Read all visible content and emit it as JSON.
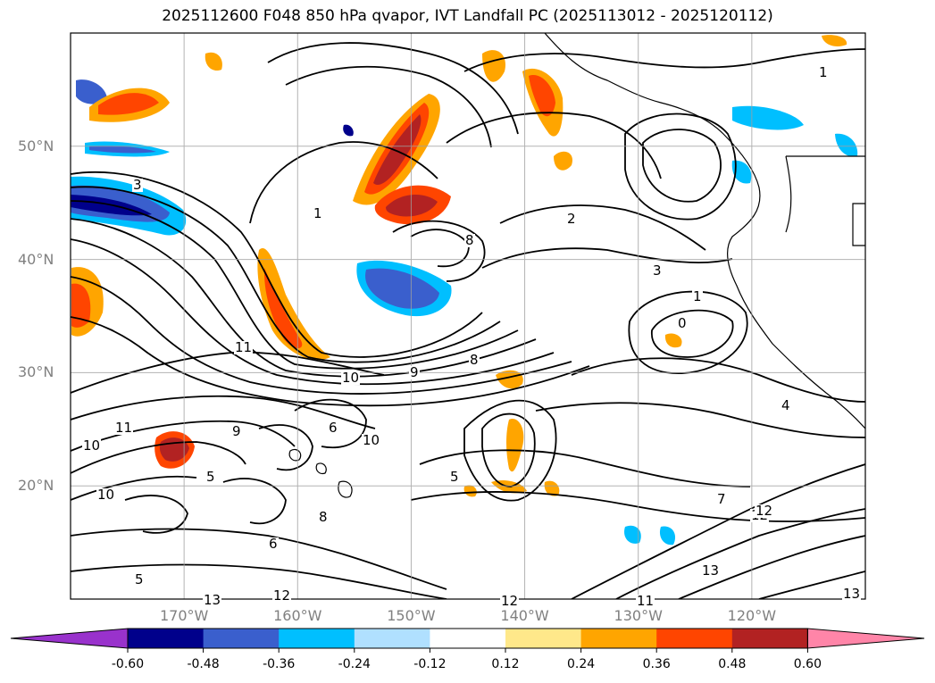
{
  "title": "2025112600 F048 850 hPa qvapor, IVT Landfall PC (2025113012 - 2025120112)",
  "map": {
    "lon_min": -180,
    "lon_max": -110,
    "lat_min": 10,
    "lat_max": 60,
    "lat_labels": [
      "20°N",
      "30°N",
      "40°N",
      "50°N"
    ],
    "lat_values": [
      20,
      30,
      40,
      50
    ],
    "lon_labels": [
      "170°W",
      "160°W",
      "150°W",
      "140°W",
      "130°W",
      "120°W"
    ],
    "lon_values": [
      -170,
      -160,
      -150,
      -140,
      -130,
      -120
    ],
    "contour_labels": [
      "1",
      "1",
      "2",
      "3",
      "3",
      "1",
      "0",
      "4",
      "8",
      "10",
      "9",
      "11",
      "8",
      "6",
      "5",
      "9",
      "10",
      "11",
      "10",
      "12",
      "6",
      "5",
      "8",
      "7",
      "5",
      "10",
      "12",
      "13",
      "13",
      "12",
      "13",
      "11",
      "12"
    ]
  },
  "colorbar": {
    "ticks": [
      "-0.60",
      "-0.48",
      "-0.36",
      "-0.24",
      "-0.12",
      "0.12",
      "0.24",
      "0.36",
      "0.48",
      "0.60"
    ],
    "colors": [
      "#9932cc",
      "#00008b",
      "#3a5fcd",
      "#00bfff",
      "#b0e0ff",
      "#ffffff",
      "#ffe88a",
      "#ffa500",
      "#ff4500",
      "#b22222",
      "#ff85a8"
    ]
  },
  "colors": {
    "contour": "#000000",
    "grid": "#a0a0a0",
    "coast": "#000000"
  }
}
